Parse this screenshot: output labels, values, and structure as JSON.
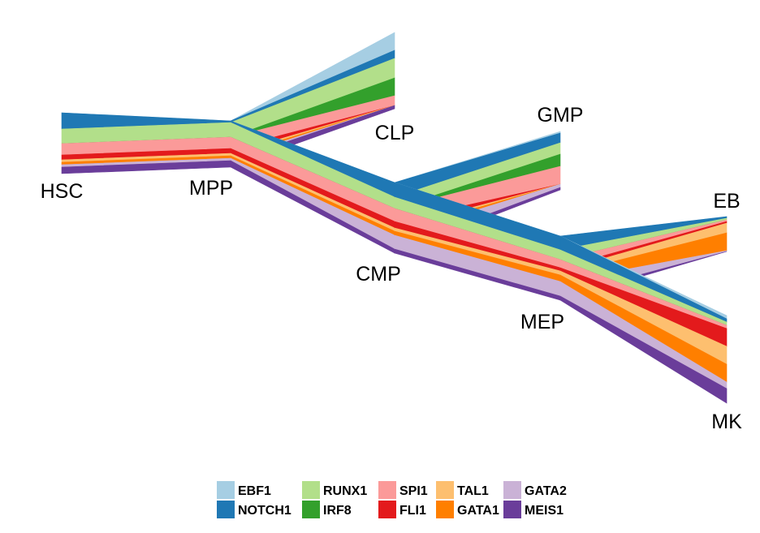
{
  "chart_data": {
    "type": "area",
    "title": "",
    "xlabel": "",
    "ylabel": "",
    "layer_order_top_to_bottom": [
      "EBF1",
      "NOTCH1",
      "RUNX1",
      "IRF8",
      "SPI1",
      "FLI1",
      "TAL1",
      "GATA1",
      "GATA2",
      "MEIS1"
    ],
    "series": [
      {
        "name": "EBF1",
        "color": "#a6cee3"
      },
      {
        "name": "NOTCH1",
        "color": "#1f78b4"
      },
      {
        "name": "RUNX1",
        "color": "#b2df8a"
      },
      {
        "name": "IRF8",
        "color": "#33a02c"
      },
      {
        "name": "SPI1",
        "color": "#fb9a99"
      },
      {
        "name": "FLI1",
        "color": "#e31a1c"
      },
      {
        "name": "TAL1",
        "color": "#fdbf6f"
      },
      {
        "name": "GATA1",
        "color": "#ff7f00"
      },
      {
        "name": "GATA2",
        "color": "#cab2d6"
      },
      {
        "name": "MEIS1",
        "color": "#6a3d9a"
      }
    ],
    "nodes": [
      {
        "name": "HSC",
        "values": {
          "EBF1": 0,
          "NOTCH1": 20,
          "RUNX1": 18,
          "IRF8": 0,
          "SPI1": 14,
          "FLI1": 6,
          "TAL1": 3,
          "GATA1": 3,
          "GATA2": 3,
          "MEIS1": 8
        }
      },
      {
        "name": "MPP",
        "values": {
          "EBF1": 0,
          "NOTCH1": 2,
          "RUNX1": 18,
          "IRF8": 0,
          "SPI1": 14,
          "FLI1": 6,
          "TAL1": 3,
          "GATA1": 3,
          "GATA2": 3,
          "MEIS1": 8
        }
      },
      {
        "name": "CLP",
        "values": {
          "EBF1": 22,
          "NOTCH1": 10,
          "RUNX1": 24,
          "IRF8": 22,
          "SPI1": 12,
          "FLI1": 0,
          "TAL1": 0,
          "GATA1": 0,
          "GATA2": 0,
          "MEIS1": 4
        }
      },
      {
        "name": "CMP",
        "values": {
          "EBF1": 0,
          "NOTCH1": 18,
          "RUNX1": 14,
          "IRF8": 0,
          "SPI1": 16,
          "FLI1": 8,
          "TAL1": 4,
          "GATA1": 5,
          "GATA2": 17,
          "MEIS1": 5
        }
      },
      {
        "name": "GMP",
        "values": {
          "EBF1": 2,
          "NOTCH1": 12,
          "RUNX1": 14,
          "IRF8": 15,
          "SPI1": 22,
          "FLI1": 0,
          "TAL1": 0,
          "GATA1": 0,
          "GATA2": 4,
          "MEIS1": 3
        }
      },
      {
        "name": "MEP",
        "values": {
          "EBF1": 0,
          "NOTCH1": 17,
          "RUNX1": 12,
          "IRF8": 0,
          "SPI1": 10,
          "FLI1": 4,
          "TAL1": 5,
          "GATA1": 8,
          "GATA2": 18,
          "MEIS1": 5
        }
      },
      {
        "name": "EB",
        "values": {
          "EBF1": 0,
          "NOTCH1": 2,
          "RUNX1": 2,
          "IRF8": 0,
          "SPI1": 2,
          "FLI1": 2,
          "TAL1": 12,
          "GATA1": 22,
          "GATA2": 1,
          "MEIS1": 0
        }
      },
      {
        "name": "MK",
        "values": {
          "EBF1": 4,
          "NOTCH1": 4,
          "RUNX1": 4,
          "IRF8": 0,
          "SPI1": 4,
          "FLI1": 22,
          "TAL1": 22,
          "GATA1": 22,
          "GATA2": 8,
          "MEIS1": 18
        }
      }
    ],
    "edges": [
      [
        "HSC",
        "MPP"
      ],
      [
        "MPP",
        "CLP"
      ],
      [
        "MPP",
        "CMP"
      ],
      [
        "CMP",
        "GMP"
      ],
      [
        "CMP",
        "MEP"
      ],
      [
        "MEP",
        "EB"
      ],
      [
        "MEP",
        "MK"
      ]
    ],
    "legend_position": "bottom",
    "grid": false
  }
}
